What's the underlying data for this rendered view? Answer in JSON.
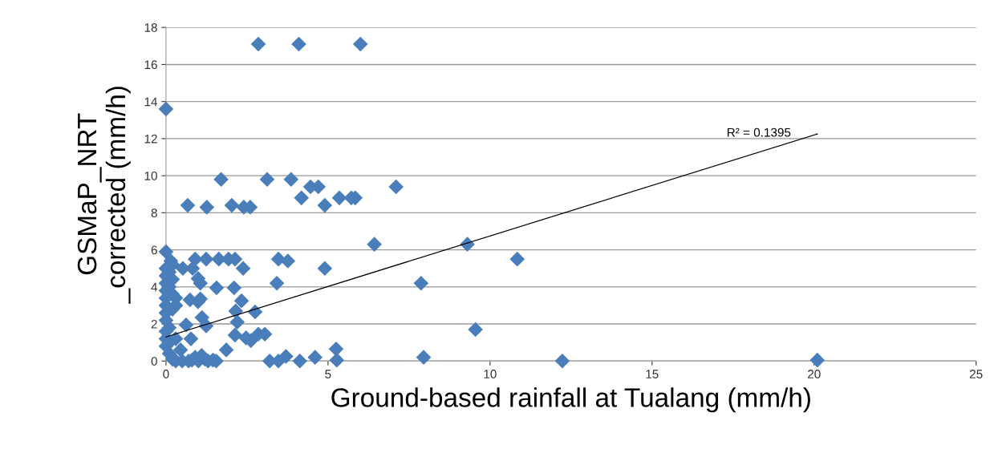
{
  "chart_data": {
    "type": "scatter",
    "xlabel": "Ground-based rainfall at Tualang (mm/h)",
    "ylabel": "GSMaP_NRT\n_corrected (mm/h)",
    "xlim": [
      0,
      25
    ],
    "xticks": [
      0,
      5,
      10,
      15,
      20,
      25
    ],
    "ylim": [
      0,
      18
    ],
    "yticks": [
      0,
      2,
      4,
      6,
      8,
      10,
      12,
      14,
      16,
      18
    ],
    "grid": "y",
    "series": [
      {
        "color": "#4a7ebb",
        "marker": "diamond",
        "x": [
          0,
          2.85,
          4.1,
          6.0,
          0,
          0.67,
          1.26,
          1.7,
          2.03,
          2.4,
          2.6,
          3.12,
          3.86,
          4.18,
          4.46,
          4.7,
          4.9,
          5.35,
          5.72,
          5.84,
          7.1,
          6.43,
          9.3,
          10.84,
          7.87,
          9.55,
          7.95,
          12.23,
          20.1,
          5.25,
          5.27,
          3.47,
          3.76,
          4.9,
          3.42,
          3.2,
          3.47,
          3.7,
          4.13,
          4.6,
          2.75,
          2.33,
          2.15,
          2.2,
          2.13,
          2.47,
          2.62,
          2.85,
          3.05,
          1.86,
          1.56,
          2.1,
          0.99,
          1.06,
          1.11,
          1.24,
          0.62,
          0.77,
          0.9,
          1.24,
          1.63,
          1.93,
          2.13,
          2.38,
          0.52,
          0.82,
          0.99,
          1.06,
          0.15,
          0.74,
          0,
          0,
          0,
          0,
          0,
          0,
          0,
          0,
          0,
          0,
          0,
          0.1,
          0.1,
          0.1,
          0.1,
          0.1,
          0.2,
          0.2,
          0.2,
          0.2,
          0.3,
          0.3,
          0.3,
          0.45,
          0.8,
          0.9,
          1.1,
          1.2,
          1.45,
          1.55,
          0.3,
          0.5,
          0.7,
          1.0,
          1.3,
          0.2
        ],
        "values": [
          13.6,
          17.1,
          17.1,
          17.1,
          5.9,
          8.4,
          8.3,
          9.8,
          8.4,
          8.3,
          8.3,
          9.8,
          9.8,
          8.8,
          9.4,
          9.4,
          8.4,
          8.8,
          8.8,
          8.8,
          9.4,
          6.3,
          6.3,
          5.5,
          4.2,
          1.7,
          0.2,
          0,
          0.05,
          0.65,
          0.05,
          5.5,
          5.4,
          5.0,
          4.2,
          0,
          0,
          0.25,
          0,
          0.2,
          2.65,
          3.25,
          2.7,
          2.1,
          1.4,
          1.25,
          1.1,
          1.45,
          1.45,
          0.6,
          3.95,
          3.95,
          3.2,
          3.35,
          2.35,
          1.9,
          1.95,
          1.2,
          5.5,
          5.5,
          5.5,
          5.5,
          5.5,
          5.0,
          5.0,
          5.0,
          4.45,
          4.2,
          5.4,
          3.3,
          5.0,
          4.6,
          4.2,
          3.8,
          3.4,
          3.0,
          2.6,
          2.2,
          1.6,
          1.2,
          0.8,
          4.8,
          4.0,
          1.8,
          1.0,
          0.4,
          5.2,
          4.4,
          3.6,
          2.8,
          3.4,
          3.0,
          1.2,
          0.6,
          0.05,
          0.2,
          0.3,
          0.1,
          0.05,
          0,
          0,
          0,
          0,
          0,
          0,
          0.1
        ]
      },
      {
        "type": "line",
        "color": "#000000",
        "x": [
          0,
          20.1
        ],
        "values": [
          1.3,
          12.25
        ]
      }
    ],
    "annotations": [
      "R² = 0.1395"
    ]
  }
}
